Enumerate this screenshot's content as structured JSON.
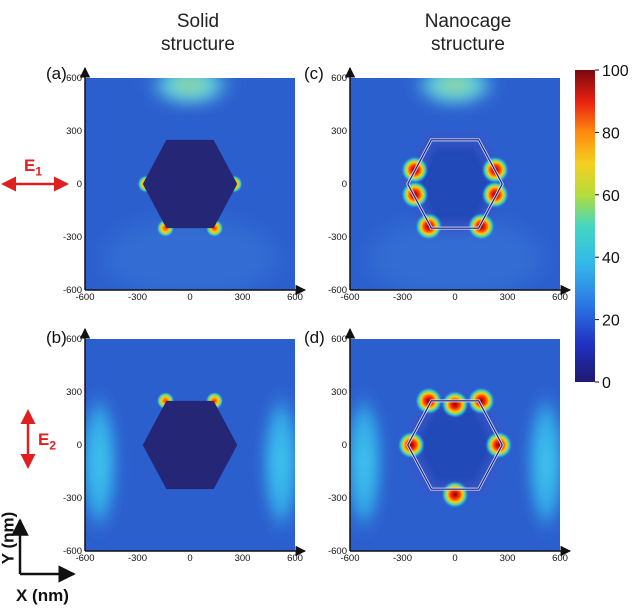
{
  "column_titles": {
    "left": [
      "Solid",
      "structure"
    ],
    "right": [
      "Nanocage",
      "structure"
    ]
  },
  "field_labels": {
    "e1": {
      "main": "E",
      "sub": "1"
    },
    "e2": {
      "main": "E",
      "sub": "2"
    }
  },
  "axis_labels": {
    "x": "X (nm)",
    "y": "Y (nm)"
  },
  "colors": {
    "arrow_red": "#e02020",
    "background_field": "#2b5fcf"
  },
  "chart_data": [
    {
      "type": "heatmap",
      "panel": "(a)",
      "structure": "solid",
      "polarization": "E1 (horizontal)",
      "xlim": [
        -600,
        600
      ],
      "ylim": [
        -600,
        600
      ],
      "x_ticks": [
        -600,
        -300,
        0,
        300,
        600
      ],
      "y_ticks": [
        600,
        300,
        0,
        -300,
        -600
      ],
      "x_tick_labels": [
        "-600",
        "-300",
        "0",
        "300",
        "600"
      ],
      "y_tick_labels": [
        "600",
        "300",
        "0",
        "-300",
        "-600"
      ],
      "hotspots": [
        [
          -250,
          0
        ],
        [
          250,
          0
        ],
        [
          -140,
          -250
        ],
        [
          140,
          -250
        ]
      ]
    },
    {
      "type": "heatmap",
      "panel": "(b)",
      "structure": "solid",
      "polarization": "E2 (vertical)",
      "xlim": [
        -600,
        600
      ],
      "ylim": [
        -600,
        600
      ],
      "x_ticks": [
        -600,
        -300,
        0,
        300,
        600
      ],
      "y_ticks": [
        600,
        300,
        0,
        -300,
        -600
      ],
      "x_tick_labels": [
        "-600",
        "-300",
        "0",
        "300",
        "600"
      ],
      "y_tick_labels": [
        "600",
        "300",
        "0",
        "-300",
        "-600"
      ],
      "hotspots": [
        [
          -140,
          250
        ],
        [
          140,
          250
        ]
      ]
    },
    {
      "type": "heatmap",
      "panel": "(c)",
      "structure": "nanocage",
      "polarization": "E1 (horizontal)",
      "xlim": [
        -600,
        600
      ],
      "ylim": [
        -600,
        600
      ],
      "x_ticks": [
        -600,
        -300,
        0,
        300,
        600
      ],
      "y_ticks": [
        600,
        300,
        0,
        -300,
        -600
      ],
      "x_tick_labels": [
        "-600",
        "-300",
        "0",
        "300",
        "600"
      ],
      "y_tick_labels": [
        "600",
        "300",
        "0",
        "-300",
        "-600"
      ],
      "hotspots": [
        [
          -230,
          80
        ],
        [
          230,
          80
        ],
        [
          -230,
          -60
        ],
        [
          230,
          -60
        ],
        [
          -150,
          -240
        ],
        [
          150,
          -240
        ]
      ]
    },
    {
      "type": "heatmap",
      "panel": "(d)",
      "structure": "nanocage",
      "polarization": "E2 (vertical)",
      "xlim": [
        -600,
        600
      ],
      "ylim": [
        -600,
        600
      ],
      "x_ticks": [
        -600,
        -300,
        0,
        300,
        600
      ],
      "y_ticks": [
        600,
        300,
        0,
        -300,
        -600
      ],
      "x_tick_labels": [
        "-600",
        "-300",
        "0",
        "300",
        "600"
      ],
      "y_tick_labels": [
        "600",
        "300",
        "0",
        "-300",
        "-600"
      ],
      "hotspots": [
        [
          0,
          230
        ],
        [
          -150,
          250
        ],
        [
          150,
          250
        ],
        [
          0,
          -280
        ],
        [
          -250,
          0
        ],
        [
          250,
          0
        ]
      ]
    }
  ],
  "colorbar": {
    "min": 0,
    "max": 100,
    "ticks": [
      100,
      80,
      60,
      40,
      20,
      0
    ],
    "tick_labels": [
      "100",
      "80",
      "60",
      "40",
      "20",
      "0"
    ],
    "colormap": "jet"
  }
}
